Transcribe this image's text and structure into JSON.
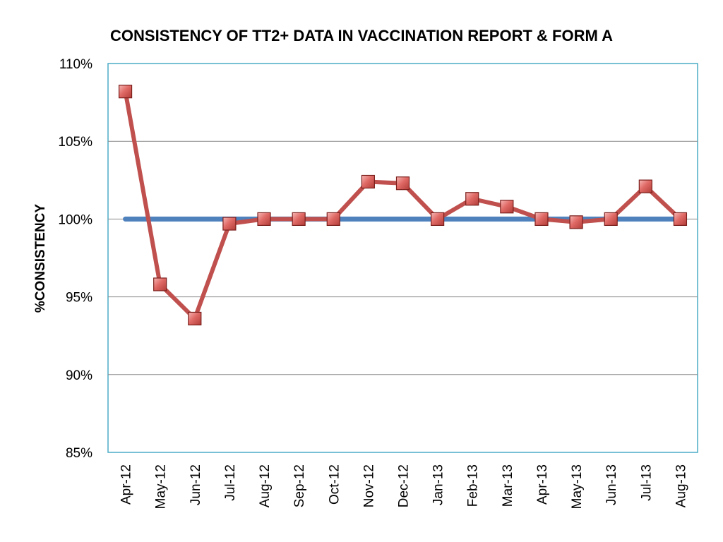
{
  "chart_data": {
    "type": "line",
    "title": "CONSISTENCY OF TT2+ DATA IN VACCINATION REPORT & FORM A",
    "xlabel": "",
    "ylabel": "%CONSISTENCY",
    "categories": [
      "Apr-12",
      "May-12",
      "Jun-12",
      "Jul-12",
      "Aug-12",
      "Sep-12",
      "Oct-12",
      "Nov-12",
      "Dec-12",
      "Jan-13",
      "Feb-13",
      "Mar-13",
      "Apr-13",
      "May-13",
      "Jun-13",
      "Jul-13",
      "Aug-13"
    ],
    "ylim": [
      85,
      110
    ],
    "yticks": [
      85,
      90,
      95,
      100,
      105,
      110
    ],
    "ytick_labels": [
      "85%",
      "90%",
      "95%",
      "100%",
      "105%",
      "110%"
    ],
    "grid": true,
    "legend": "none",
    "series": [
      {
        "values": [
          100,
          100,
          100,
          100,
          100,
          100,
          100,
          100,
          100,
          100,
          100,
          100,
          100,
          100,
          100,
          100,
          100
        ],
        "color": "#4F81BD",
        "marker": "none"
      },
      {
        "values": [
          108.2,
          95.8,
          93.6,
          99.7,
          100,
          100,
          100,
          102.4,
          102.3,
          100,
          101.3,
          100.8,
          100,
          99.8,
          100,
          102.1,
          100
        ],
        "color": "#C0504D",
        "marker": "square"
      }
    ]
  }
}
